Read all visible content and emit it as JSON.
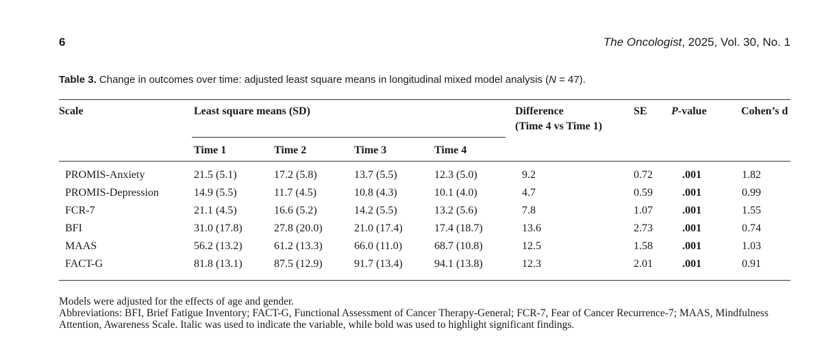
{
  "header": {
    "page_number": "6",
    "journal": "The Oncologist",
    "citation": ", 2025, Vol. 30, No. 1"
  },
  "caption": {
    "label": "Table 3.",
    "text_before_italic": " Change in outcomes over time: adjusted least square means in longitudinal mixed model analysis (",
    "italic": "N",
    "text_after_italic": " = 47)."
  },
  "table": {
    "headers": {
      "scale": "Scale",
      "lsm": "Least square means (SD)",
      "difference_line1": "Difference",
      "difference_line2": "(Time 4 vs Time 1)",
      "se": "SE",
      "p_italic": "P",
      "p_rest": "-value",
      "cohen": "Cohen’s d",
      "times": [
        "Time 1",
        "Time 2",
        "Time 3",
        "Time 4"
      ]
    },
    "rows": [
      [
        "PROMIS-Anxiety",
        "21.5 (5.1)",
        "17.2 (5.8)",
        "13.7 (5.5)",
        "12.3 (5.0)",
        "9.2",
        "0.72",
        ".001",
        "1.82"
      ],
      [
        "PROMIS-Depression",
        "14.9 (5.5)",
        "11.7 (4.5)",
        "10.8 (4.3)",
        "10.1 (4.0)",
        "4.7",
        "0.59",
        ".001",
        "0.99"
      ],
      [
        "FCR-7",
        "21.1 (4.5)",
        "16.6 (5.2)",
        "14.2 (5.5)",
        "13.2 (5.6)",
        "7.8",
        "1.07",
        ".001",
        "1.55"
      ],
      [
        "BFI",
        "31.0 (17.8)",
        "27.8 (20.0)",
        "21.0 (17.4)",
        "17.4 (18.7)",
        "13.6",
        "2.73",
        ".001",
        "0.74"
      ],
      [
        "MAAS",
        "56.2 (13.2)",
        "61.2 (13.3)",
        "66.0 (11.0)",
        "68.7 (10.8)",
        "12.5",
        "1.58",
        ".001",
        "1.03"
      ],
      [
        "FACT-G",
        "81.8 (13.1)",
        "87.5 (12.9)",
        "91.7 (13.4)",
        "94.1 (13.8)",
        "12.3",
        "2.01",
        ".001",
        "0.91"
      ]
    ]
  },
  "footnotes": [
    "Models were adjusted for the effects of age and gender.",
    "Abbreviations: BFI, Brief Fatigue Inventory; FACT-G, Functional Assessment of Cancer Therapy-General; FCR-7, Fear of Cancer Recurrence-7; MAAS, Mindfulness Attention, Awareness Scale. Italic was used to indicate the variable, while bold was used to highlight significant findings."
  ]
}
